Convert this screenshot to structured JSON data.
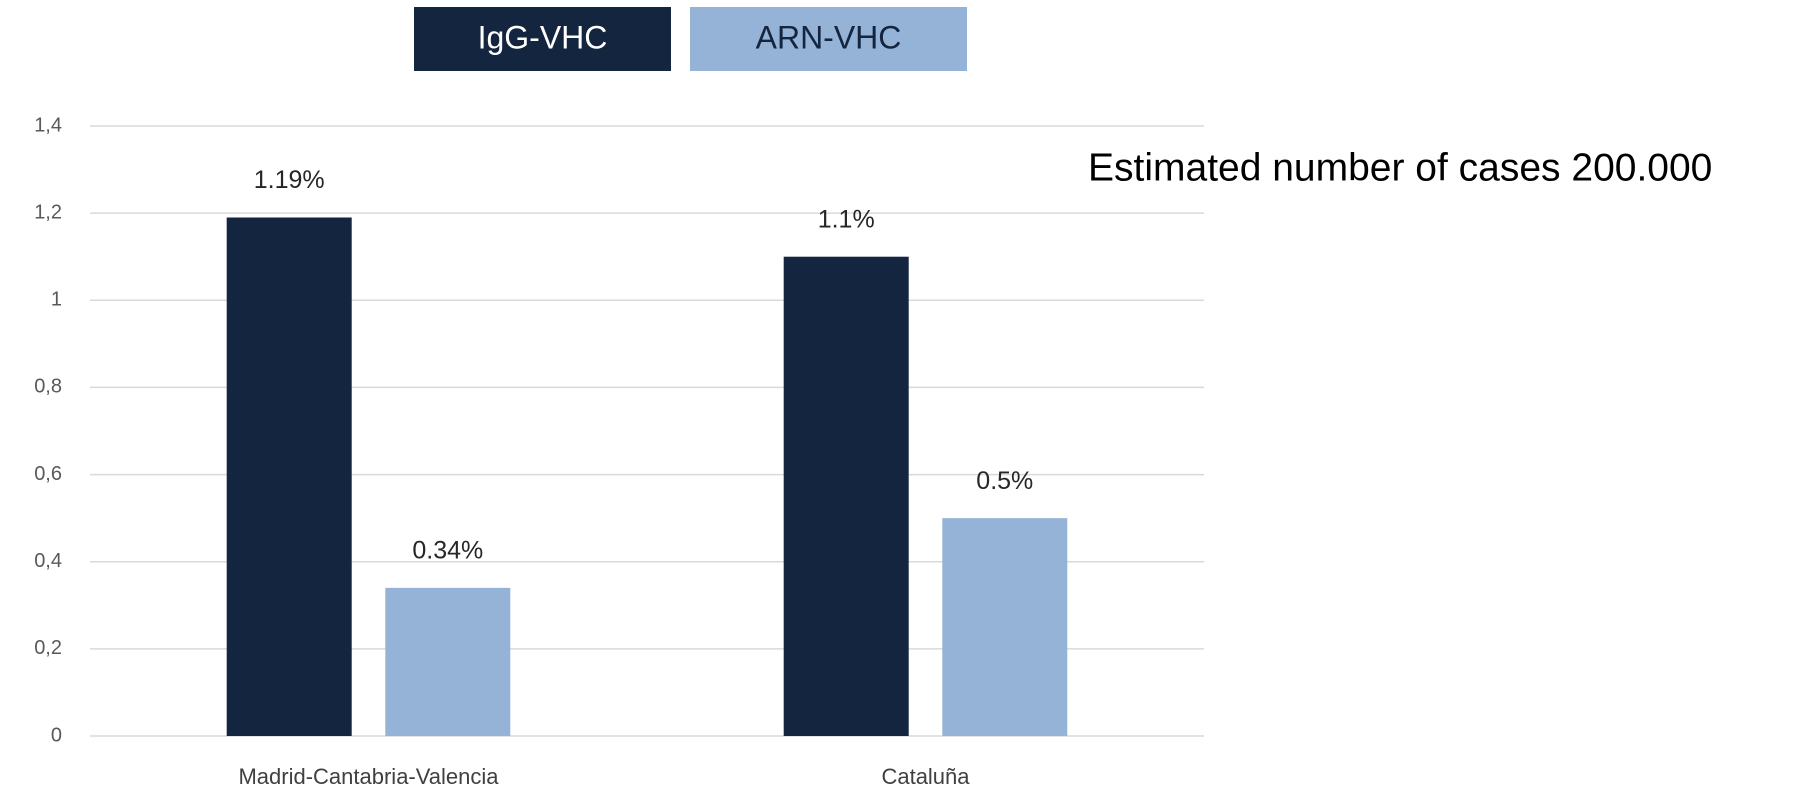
{
  "chart_data": {
    "type": "bar",
    "categories": [
      "Madrid-Cantabria-Valencia",
      "Cataluña"
    ],
    "series": [
      {
        "name": "IgG-VHC",
        "color": "#14253f",
        "values": [
          1.19,
          1.1
        ],
        "value_labels": [
          "1.19%",
          "1.1%"
        ]
      },
      {
        "name": "ARN-VHC",
        "color": "#95b3d7",
        "values": [
          0.34,
          0.5
        ],
        "value_labels": [
          "0.34%",
          "0.5%"
        ]
      }
    ],
    "ylim": [
      0,
      1.4
    ],
    "yticks": [
      0,
      {
        "value": 0.2,
        "label": "0,2"
      },
      {
        "value": 0.4,
        "label": "0,4"
      },
      {
        "value": 0.6,
        "label": "0,6"
      },
      {
        "value": 0.8,
        "label": "0,8"
      },
      1,
      {
        "value": 1.2,
        "label": "1,2"
      },
      {
        "value": 1.4,
        "label": "1,4"
      }
    ],
    "grid": true,
    "annotation": "Estimated number of cases 200.000"
  }
}
